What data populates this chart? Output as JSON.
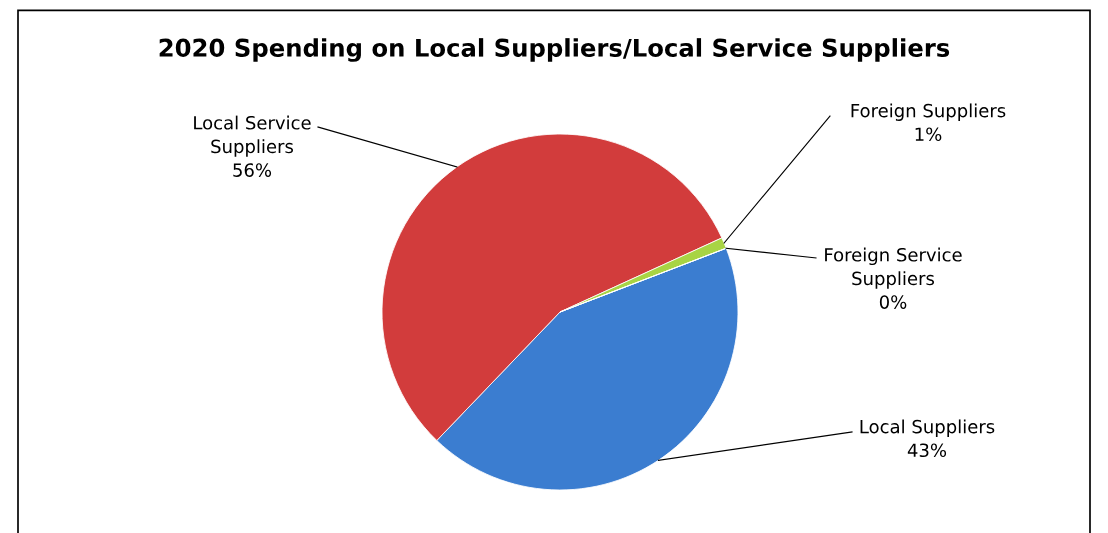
{
  "chart_data": {
    "type": "pie",
    "title": "2020 Spending on Local Suppliers/Local Service Suppliers",
    "categories": [
      "Local Suppliers",
      "Local Service Suppliers",
      "Foreign Suppliers",
      "Foreign Service Suppliers"
    ],
    "values": [
      43,
      56,
      1,
      0
    ],
    "colors": [
      "#3b7dd0",
      "#d23c3c",
      "#a8d444",
      "#7f63a8"
    ],
    "value_labels": [
      "43%",
      "56%",
      "1%",
      "0%"
    ]
  }
}
